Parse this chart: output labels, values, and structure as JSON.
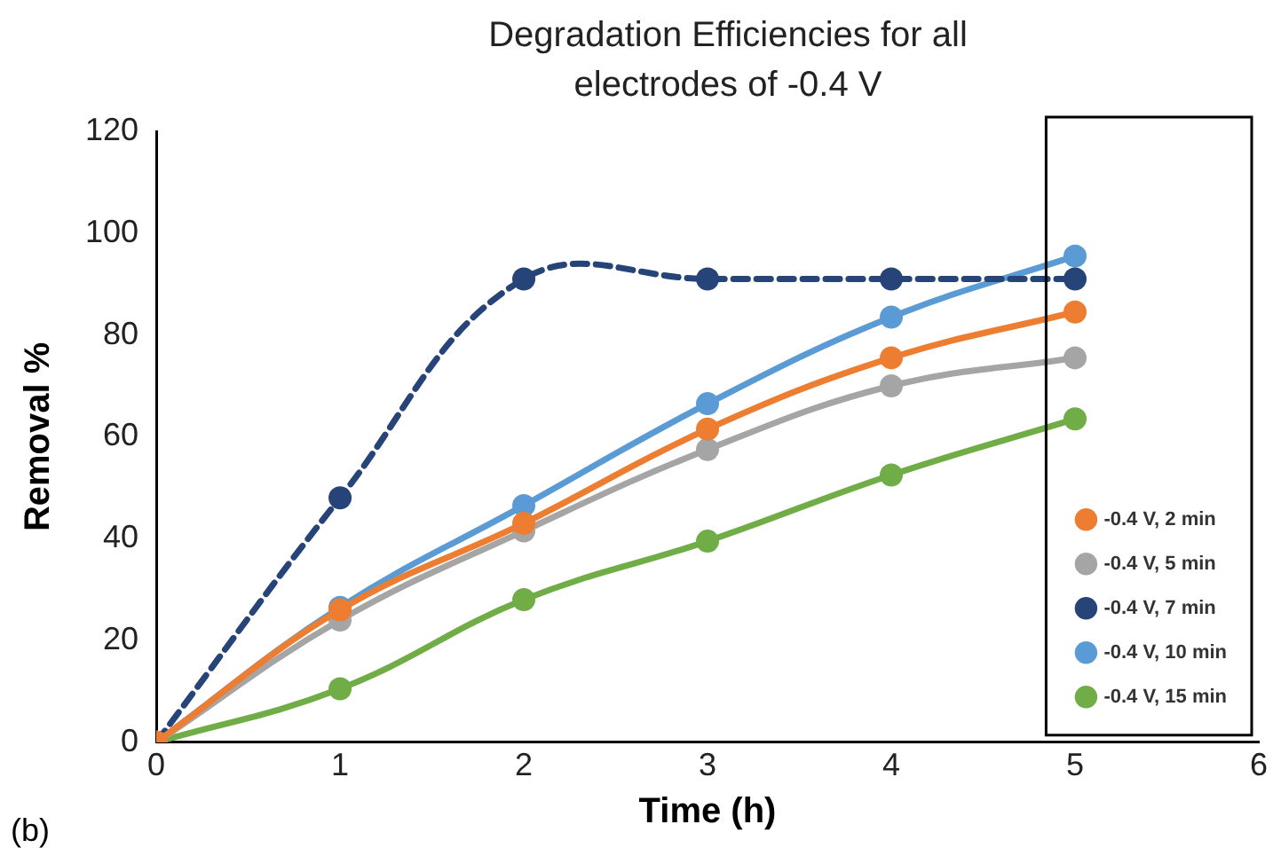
{
  "chart_data": {
    "type": "line",
    "title": "Degradation Efficiencies for all electrodes of -0.4 V",
    "xlabel": "Time (h)",
    "ylabel": "Removal %",
    "x": [
      0,
      1,
      2,
      3,
      4,
      5
    ],
    "xlim": [
      0,
      6
    ],
    "xticks": [
      0,
      1,
      2,
      3,
      4,
      5,
      6
    ],
    "ylim": [
      0,
      120
    ],
    "yticks": [
      0,
      20,
      40,
      60,
      80,
      100,
      120
    ],
    "grid": false,
    "legend": "bottom right",
    "marker": "circle",
    "annotations": [
      "(b)"
    ],
    "series": [
      {
        "name": "-0.4 V, 2 min",
        "color": "#ed7d31",
        "values": [
          0,
          26,
          43,
          61.5,
          75.5,
          84.5
        ]
      },
      {
        "name": "-0.4 V, 5 min",
        "color": "#a5a5a5",
        "values": [
          0,
          24,
          41.5,
          57.5,
          70,
          75.5
        ]
      },
      {
        "name": "-0.4 V, 7 min",
        "color": "#264478",
        "line_style": "dashed",
        "values": [
          0,
          48,
          91,
          91,
          91,
          91
        ]
      },
      {
        "name": "-0.4 V, 10 min",
        "color": "#5b9bd5",
        "values": [
          0,
          26.5,
          46.5,
          66.5,
          83.5,
          95.5
        ]
      },
      {
        "name": "-0.4 V, 15 min",
        "color": "#70ad47",
        "values": [
          0,
          10.5,
          28,
          39.5,
          52.5,
          63.5
        ]
      }
    ]
  }
}
